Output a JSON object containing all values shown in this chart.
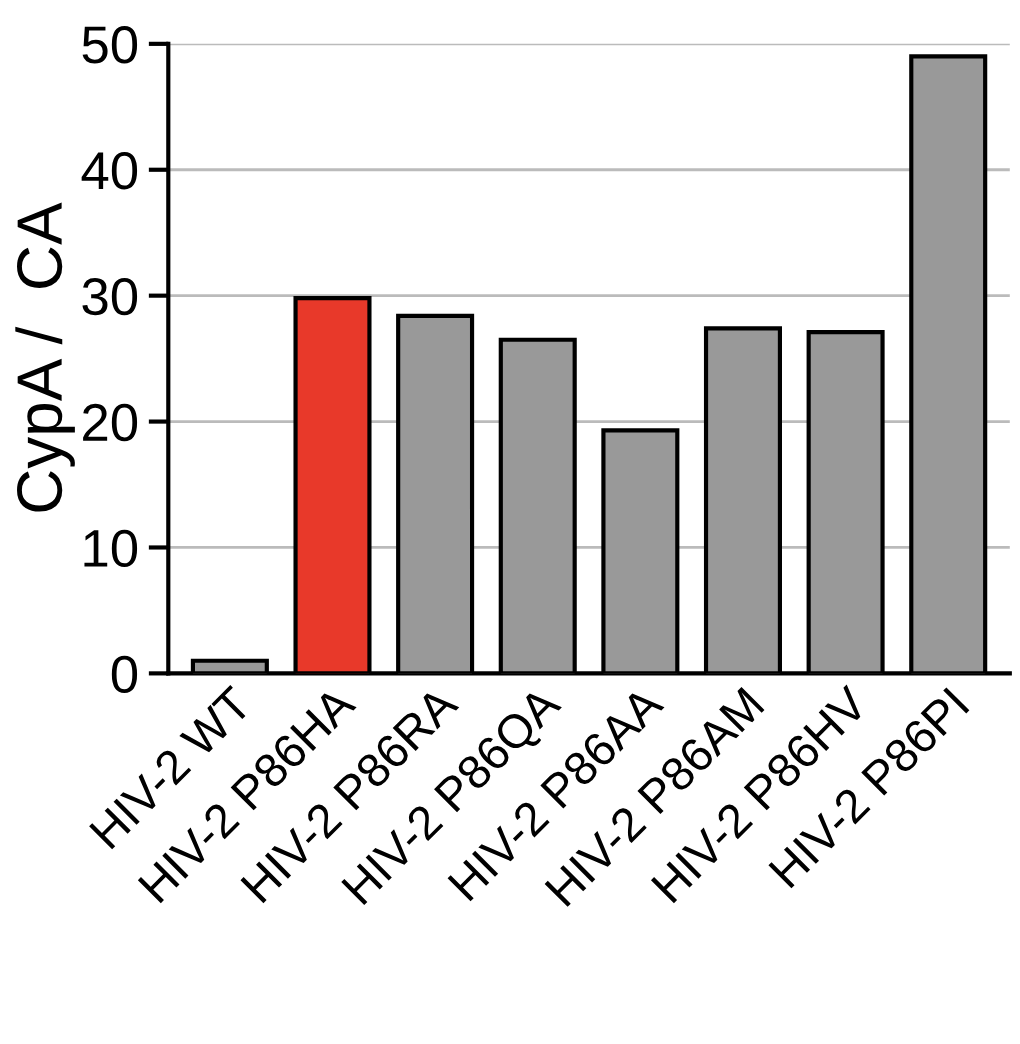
{
  "chart_data": {
    "type": "bar",
    "ylabel": "CypA /  CA",
    "categories": [
      "HIV-2 WT",
      "HIV-2 P86HA",
      "HIV-2 P86RA",
      "HIV-2 P86QA",
      "HIV-2 P86AA",
      "HIV-2 P86AM",
      "HIV-2 P86HV",
      "HIV-2 P86PI"
    ],
    "values": [
      1,
      29.8,
      28.4,
      26.5,
      19.3,
      27.4,
      27.1,
      49.0
    ],
    "colors": [
      "#999999",
      "#e8392a",
      "#999999",
      "#999999",
      "#999999",
      "#999999",
      "#999999",
      "#999999"
    ],
    "ylim": [
      0,
      50
    ],
    "yticks": [
      0,
      10,
      20,
      30,
      40,
      50
    ],
    "grid": "y"
  }
}
